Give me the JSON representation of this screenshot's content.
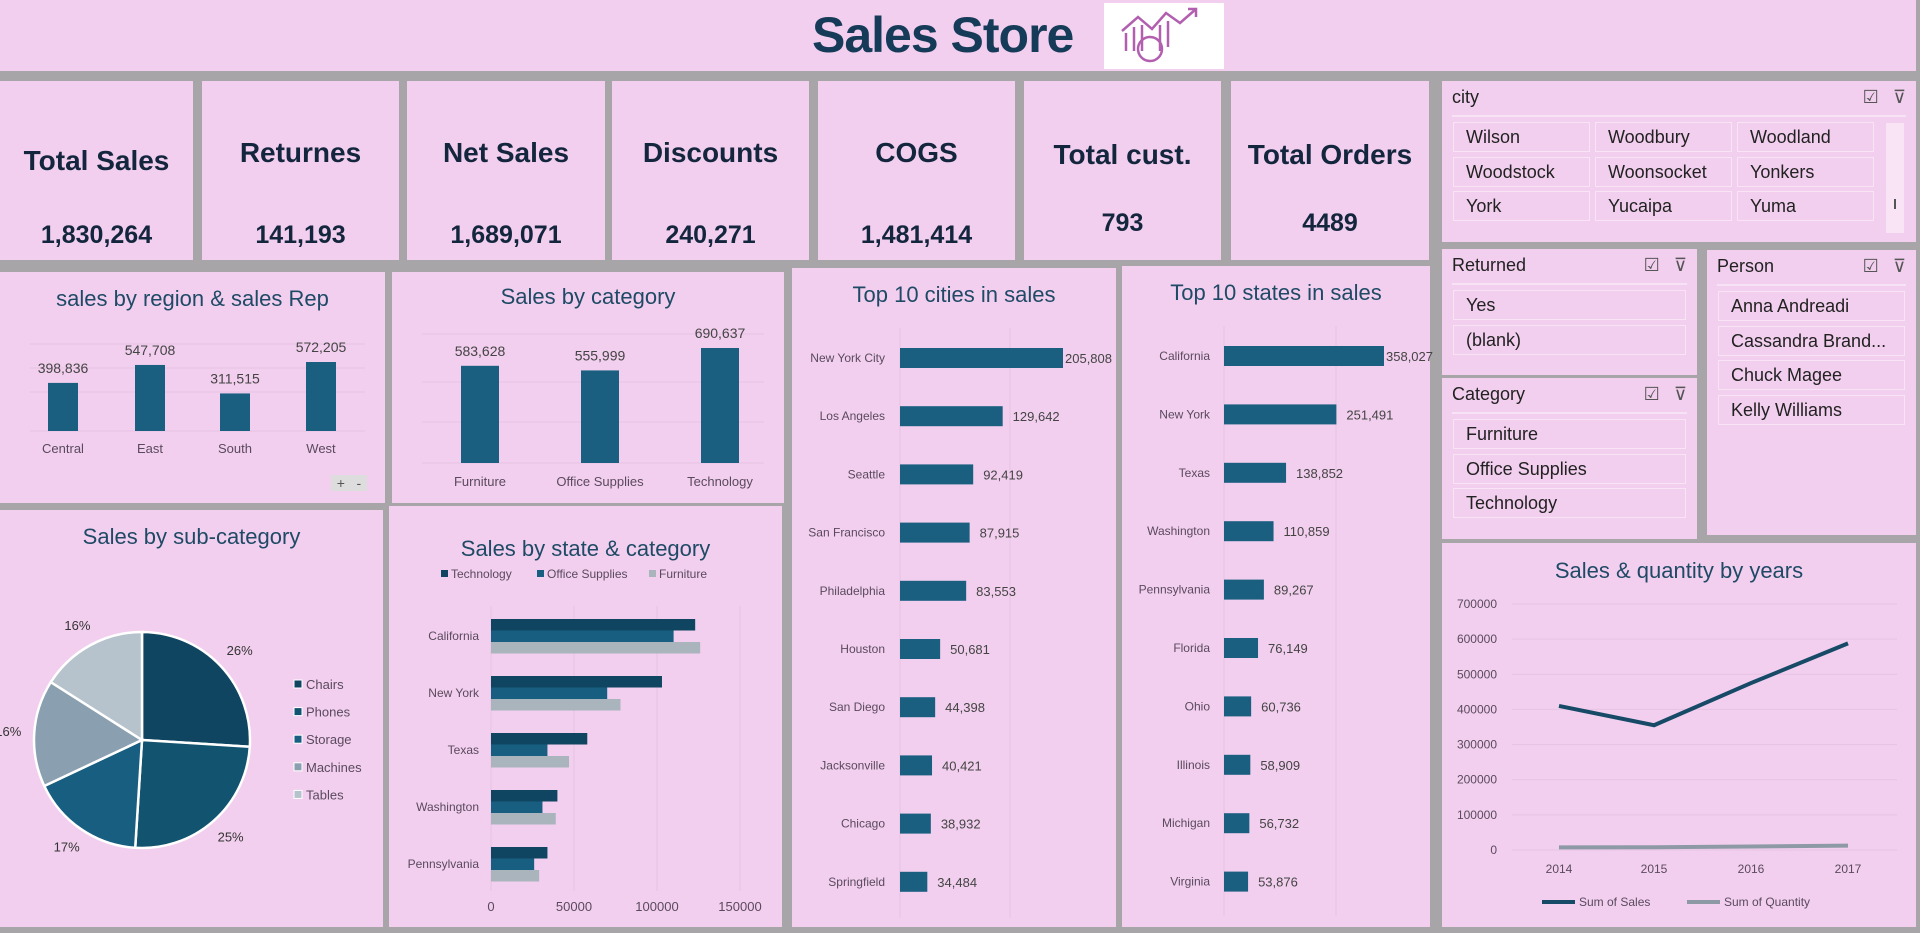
{
  "header": {
    "title": "Sales Store",
    "logo_icon": "sales-growth-chart-icon"
  },
  "kpis": [
    {
      "label": "Total Sales",
      "value": "1,830,264"
    },
    {
      "label": "Returnes",
      "value": "141,193"
    },
    {
      "label": "Net Sales",
      "value": "1,689,071"
    },
    {
      "label": "Discounts",
      "value": "240,271"
    },
    {
      "label": "COGS",
      "value": "1,481,414"
    },
    {
      "label": "Total cust.",
      "value": "793"
    },
    {
      "label": "Total Orders",
      "value": "4489"
    }
  ],
  "slicers": {
    "city": {
      "title": "city",
      "items": [
        "Wilson",
        "Woodbury",
        "Woodland",
        "Woodstock",
        "Woonsocket",
        "Yonkers",
        "York",
        "Yucaipa",
        "Yuma"
      ]
    },
    "returned": {
      "title": "Returned",
      "items": [
        "Yes",
        "(blank)"
      ]
    },
    "category": {
      "title": "Category",
      "items": [
        "Furniture",
        "Office Supplies",
        "Technology"
      ]
    },
    "person": {
      "title": "Person",
      "items": [
        "Anna Andreadi",
        "Cassandra Brand...",
        "Chuck Magee",
        "Kelly Williams"
      ]
    }
  },
  "colors": {
    "bar": "#1a5f80",
    "dark": "#0f4560",
    "grey": "#a9b4bd",
    "panel": "#f2cfee"
  },
  "zoom_buttons": {
    "plus": "+",
    "minus": "-"
  },
  "chart_data": [
    {
      "id": "region",
      "type": "bar",
      "title": "sales by region & sales Rep",
      "categories": [
        "Central",
        "East",
        "South",
        "West"
      ],
      "values": [
        398836,
        547708,
        311515,
        572205
      ],
      "labels": [
        "398,836",
        "547,708",
        "311,515",
        "572,205"
      ]
    },
    {
      "id": "category",
      "type": "bar",
      "title": "Sales by category",
      "categories": [
        "Furniture",
        "Office Supplies",
        "Technology"
      ],
      "values": [
        583628,
        555999,
        690637
      ],
      "labels": [
        "583,628",
        "555,999",
        "690,637"
      ]
    },
    {
      "id": "cities",
      "type": "bar",
      "orientation": "horizontal",
      "title": "Top 10 cities in sales",
      "categories": [
        "New York City",
        "Los Angeles",
        "Seattle",
        "San Francisco",
        "Philadelphia",
        "Houston",
        "San Diego",
        "Jacksonville",
        "Chicago",
        "Springfield"
      ],
      "values": [
        205808,
        129642,
        92419,
        87915,
        83553,
        50681,
        44398,
        40421,
        38932,
        34484
      ],
      "labels": [
        "205,808",
        "129,642",
        "92,419",
        "87,915",
        "83,553",
        "50,681",
        "44,398",
        "40,421",
        "38,932",
        "34,484"
      ]
    },
    {
      "id": "states",
      "type": "bar",
      "orientation": "horizontal",
      "title": "Top 10 states in sales",
      "categories": [
        "California",
        "New York",
        "Texas",
        "Washington",
        "Pennsylvania",
        "Florida",
        "Ohio",
        "Illinois",
        "Michigan",
        "Virginia"
      ],
      "values": [
        358027,
        251491,
        138852,
        110859,
        89267,
        76149,
        60736,
        58909,
        56732,
        53876
      ],
      "labels": [
        "358,027",
        "251,491",
        "138,852",
        "110,859",
        "89,267",
        "76,149",
        "60,736",
        "58,909",
        "56,732",
        "53,876"
      ]
    },
    {
      "id": "subcat",
      "type": "pie",
      "title": "Sales by sub-category",
      "categories": [
        "Chairs",
        "Phones",
        "Storage",
        "Machines",
        "Tables"
      ],
      "values": [
        26,
        25,
        17,
        16,
        16
      ],
      "labels": [
        "26%",
        "25%",
        "17%",
        "16%",
        "16%"
      ],
      "colors": [
        "#0f4560",
        "#12536f",
        "#175e80",
        "#8aa0b0",
        "#b6c3cc"
      ],
      "legend": "right"
    },
    {
      "id": "statecat",
      "type": "bar",
      "orientation": "horizontal",
      "title": "Sales by state & category",
      "categories": [
        "California",
        "New York",
        "Texas",
        "Washington",
        "Pennsylvania"
      ],
      "series": [
        {
          "name": "Technology",
          "color": "#0f4560",
          "values": [
            123000,
            103000,
            58000,
            40000,
            34000
          ]
        },
        {
          "name": "Office Supplies",
          "color": "#175e80",
          "values": [
            110000,
            70000,
            34000,
            31000,
            26000
          ]
        },
        {
          "name": "Furniture",
          "color": "#a9b4bd",
          "values": [
            126000,
            78000,
            47000,
            39000,
            29000
          ]
        }
      ],
      "xlim": [
        0,
        150000
      ],
      "xticks": [
        "0",
        "50000",
        "100000",
        "150000"
      ],
      "legend": "top"
    },
    {
      "id": "years",
      "type": "line",
      "title": "Sales & quantity by years",
      "x": [
        "2014",
        "2015",
        "2016",
        "2017"
      ],
      "series": [
        {
          "name": "Sum of Sales",
          "color": "#164a66",
          "values": [
            410000,
            355000,
            475000,
            588000
          ]
        },
        {
          "name": "Sum of Quantity",
          "color": "#8d9aa5",
          "values": [
            7500,
            8000,
            9800,
            12400
          ]
        }
      ],
      "ylim": [
        0,
        700000
      ],
      "yticks": [
        "0",
        "100000",
        "200000",
        "300000",
        "400000",
        "500000",
        "600000",
        "700000"
      ],
      "legend": "bottom"
    }
  ]
}
